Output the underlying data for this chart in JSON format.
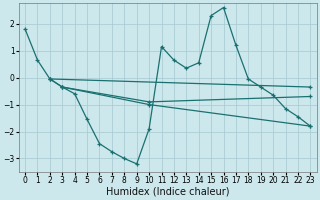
{
  "xlabel": "Humidex (Indice chaleur)",
  "bg_color": "#cce8ec",
  "grid_color": "#aacdd4",
  "line_color": "#1a7070",
  "xlim": [
    -0.5,
    23.5
  ],
  "ylim": [
    -3.5,
    2.75
  ],
  "xticks": [
    0,
    1,
    2,
    3,
    4,
    5,
    6,
    7,
    8,
    9,
    10,
    11,
    12,
    13,
    14,
    15,
    16,
    17,
    18,
    19,
    20,
    21,
    22,
    23
  ],
  "yticks": [
    -3,
    -2,
    -1,
    0,
    1,
    2
  ],
  "line1_x": [
    0,
    1,
    2,
    3,
    4,
    5,
    6,
    7,
    8,
    9,
    10,
    11,
    12,
    13,
    14,
    15,
    16,
    17,
    18,
    19,
    20,
    21,
    22,
    23
  ],
  "line1_y": [
    1.8,
    0.65,
    -0.05,
    -0.35,
    -0.6,
    -1.55,
    -2.45,
    -2.75,
    -3.0,
    -3.2,
    -1.9,
    1.15,
    0.65,
    0.35,
    0.55,
    2.3,
    2.6,
    1.2,
    -0.05,
    -0.35,
    -0.65,
    -1.15,
    -1.45,
    -1.8
  ],
  "line2_x": [
    2,
    23
  ],
  "line2_y": [
    -0.05,
    -0.35
  ],
  "line3_x": [
    2,
    3,
    10,
    23
  ],
  "line3_y": [
    -0.05,
    -0.35,
    -0.9,
    -0.7
  ],
  "line4_x": [
    3,
    10,
    23
  ],
  "line4_y": [
    -0.35,
    -1.0,
    -1.8
  ]
}
